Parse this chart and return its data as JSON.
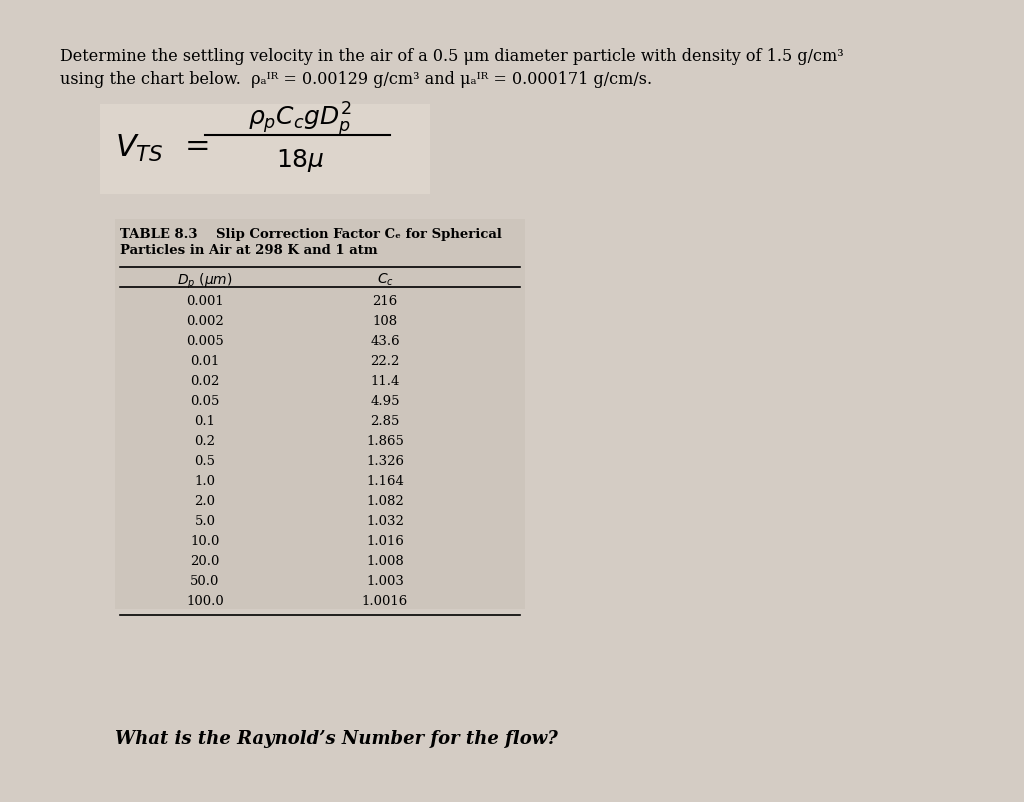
{
  "background_color": "#c8c0b8",
  "page_background": "#d4ccc4",
  "title_line1": "Determine the settling velocity in the air of a 0.5 μm diameter particle with density of 1.5 g/cm³",
  "title_line2": "using the chart below.  ρₐᴵᴿ = 0.00129 g/cm³ and μₐᴵᴿ = 0.000171 g/cm/s.",
  "table_title": "TABLE 8.3    Slip Correction Factor Cₑ for Spherical",
  "table_subtitle": "Particles in Air at 298 K and 1 atm",
  "col1_header": "Dₚ (μm)",
  "col2_header": "Cₑ",
  "dp_values": [
    "0.001",
    "0.002",
    "0.005",
    "0.01",
    "0.02",
    "0.05",
    "0.1",
    "0.2",
    "0.5",
    "1.0",
    "2.0",
    "5.0",
    "10.0",
    "20.0",
    "50.0",
    "100.0"
  ],
  "cc_values": [
    "216",
    "108",
    "43.6",
    "22.2",
    "11.4",
    "4.95",
    "2.85",
    "1.865",
    "1.326",
    "1.164",
    "1.082",
    "1.032",
    "1.016",
    "1.008",
    "1.003",
    "1.0016"
  ],
  "bottom_text": "What is the Raynold’s Number for the flow?",
  "formula_label": "V",
  "formula_subscript": "TS",
  "formula_numerator": "ρₚ Cₑ g Dₚ²",
  "formula_denominator": "18μ"
}
